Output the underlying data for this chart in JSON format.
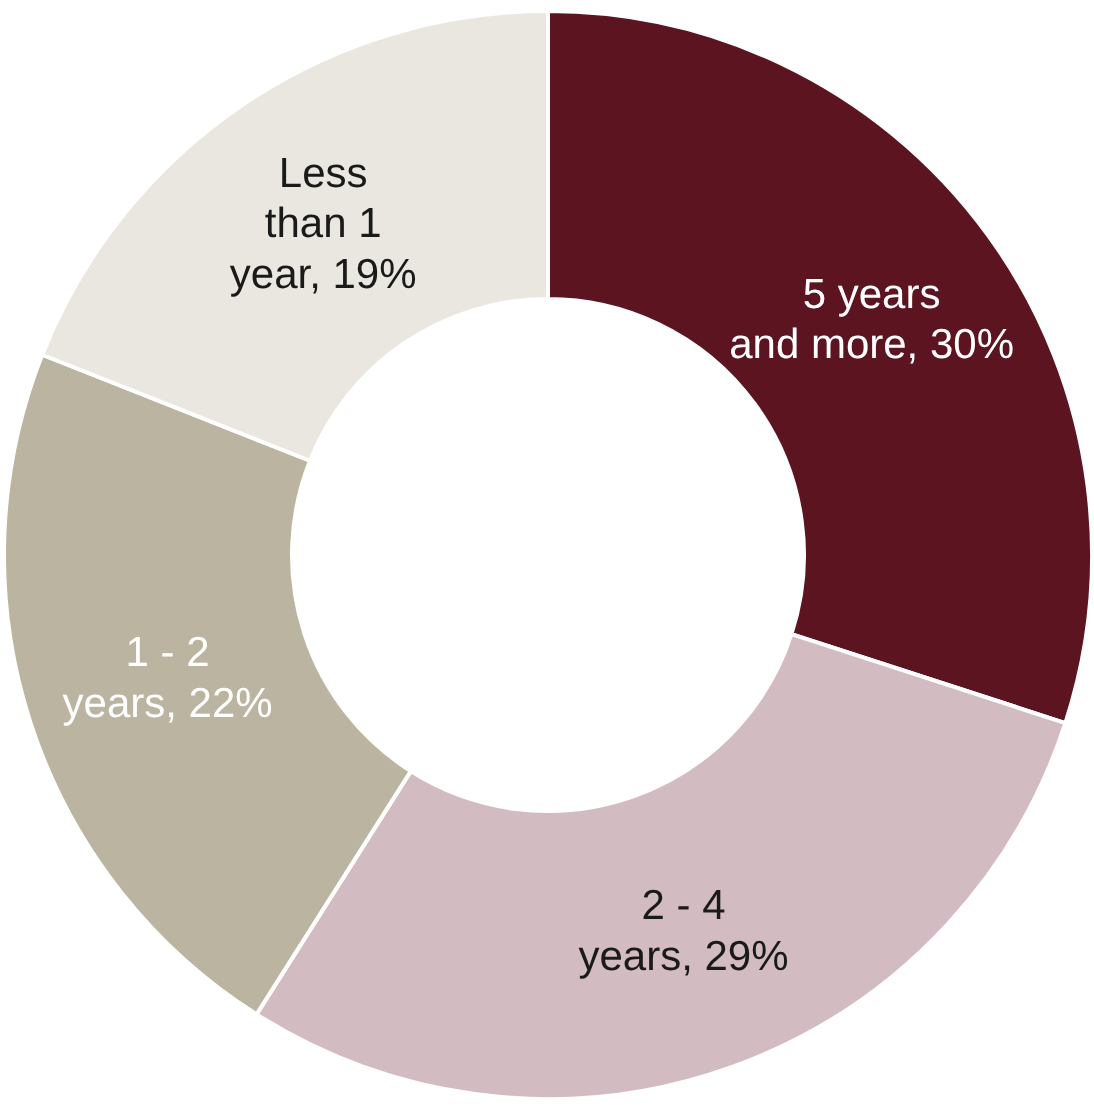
{
  "chart_data": {
    "type": "donut",
    "categories": [
      "5 years and more",
      "2 - 4 years",
      "1 - 2 years",
      "Less than 1 year"
    ],
    "values": [
      30,
      29,
      22,
      19
    ],
    "value_labels": [
      "30%",
      "29%",
      "22%",
      "19%"
    ],
    "colors": [
      "#5c1421",
      "#d3bcc1",
      "#bbb4a0",
      "#e9e7e0"
    ],
    "legend": false
  }
}
